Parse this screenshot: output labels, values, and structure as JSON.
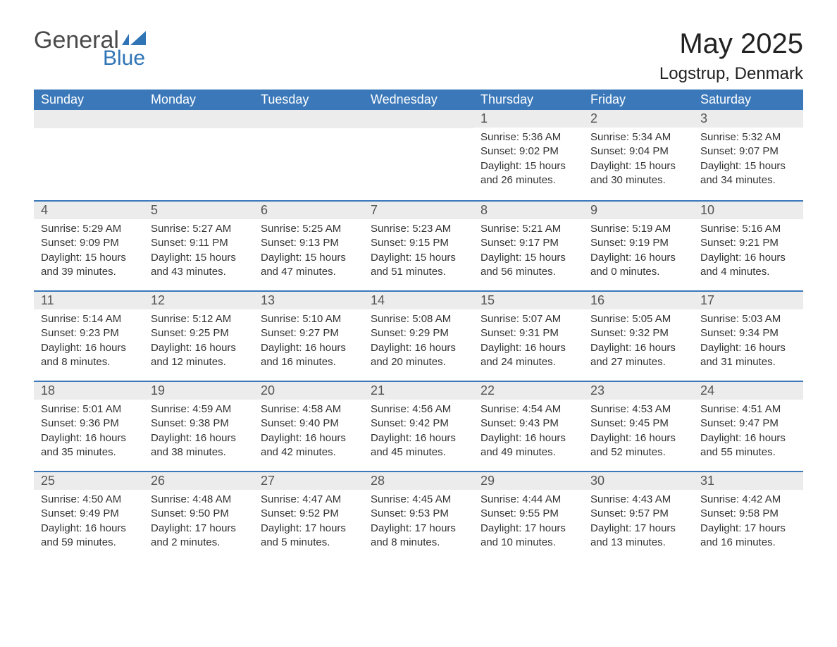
{
  "logo": {
    "word1": "General",
    "word2": "Blue",
    "flag_color": "#2f74b5"
  },
  "title": "May 2025",
  "location": "Logstrup, Denmark",
  "colors": {
    "header_bg": "#3a78b9",
    "header_text": "#ffffff",
    "daybar_bg": "#ececec",
    "daybar_text": "#555555",
    "body_text": "#333333",
    "rule": "#3a78b9",
    "background": "#ffffff"
  },
  "weekdays": [
    "Sunday",
    "Monday",
    "Tuesday",
    "Wednesday",
    "Thursday",
    "Friday",
    "Saturday"
  ],
  "weeks": [
    [
      null,
      null,
      null,
      null,
      {
        "n": "1",
        "sunrise": "5:36 AM",
        "sunset": "9:02 PM",
        "dl": "15 hours and 26 minutes."
      },
      {
        "n": "2",
        "sunrise": "5:34 AM",
        "sunset": "9:04 PM",
        "dl": "15 hours and 30 minutes."
      },
      {
        "n": "3",
        "sunrise": "5:32 AM",
        "sunset": "9:07 PM",
        "dl": "15 hours and 34 minutes."
      }
    ],
    [
      {
        "n": "4",
        "sunrise": "5:29 AM",
        "sunset": "9:09 PM",
        "dl": "15 hours and 39 minutes."
      },
      {
        "n": "5",
        "sunrise": "5:27 AM",
        "sunset": "9:11 PM",
        "dl": "15 hours and 43 minutes."
      },
      {
        "n": "6",
        "sunrise": "5:25 AM",
        "sunset": "9:13 PM",
        "dl": "15 hours and 47 minutes."
      },
      {
        "n": "7",
        "sunrise": "5:23 AM",
        "sunset": "9:15 PM",
        "dl": "15 hours and 51 minutes."
      },
      {
        "n": "8",
        "sunrise": "5:21 AM",
        "sunset": "9:17 PM",
        "dl": "15 hours and 56 minutes."
      },
      {
        "n": "9",
        "sunrise": "5:19 AM",
        "sunset": "9:19 PM",
        "dl": "16 hours and 0 minutes."
      },
      {
        "n": "10",
        "sunrise": "5:16 AM",
        "sunset": "9:21 PM",
        "dl": "16 hours and 4 minutes."
      }
    ],
    [
      {
        "n": "11",
        "sunrise": "5:14 AM",
        "sunset": "9:23 PM",
        "dl": "16 hours and 8 minutes."
      },
      {
        "n": "12",
        "sunrise": "5:12 AM",
        "sunset": "9:25 PM",
        "dl": "16 hours and 12 minutes."
      },
      {
        "n": "13",
        "sunrise": "5:10 AM",
        "sunset": "9:27 PM",
        "dl": "16 hours and 16 minutes."
      },
      {
        "n": "14",
        "sunrise": "5:08 AM",
        "sunset": "9:29 PM",
        "dl": "16 hours and 20 minutes."
      },
      {
        "n": "15",
        "sunrise": "5:07 AM",
        "sunset": "9:31 PM",
        "dl": "16 hours and 24 minutes."
      },
      {
        "n": "16",
        "sunrise": "5:05 AM",
        "sunset": "9:32 PM",
        "dl": "16 hours and 27 minutes."
      },
      {
        "n": "17",
        "sunrise": "5:03 AM",
        "sunset": "9:34 PM",
        "dl": "16 hours and 31 minutes."
      }
    ],
    [
      {
        "n": "18",
        "sunrise": "5:01 AM",
        "sunset": "9:36 PM",
        "dl": "16 hours and 35 minutes."
      },
      {
        "n": "19",
        "sunrise": "4:59 AM",
        "sunset": "9:38 PM",
        "dl": "16 hours and 38 minutes."
      },
      {
        "n": "20",
        "sunrise": "4:58 AM",
        "sunset": "9:40 PM",
        "dl": "16 hours and 42 minutes."
      },
      {
        "n": "21",
        "sunrise": "4:56 AM",
        "sunset": "9:42 PM",
        "dl": "16 hours and 45 minutes."
      },
      {
        "n": "22",
        "sunrise": "4:54 AM",
        "sunset": "9:43 PM",
        "dl": "16 hours and 49 minutes."
      },
      {
        "n": "23",
        "sunrise": "4:53 AM",
        "sunset": "9:45 PM",
        "dl": "16 hours and 52 minutes."
      },
      {
        "n": "24",
        "sunrise": "4:51 AM",
        "sunset": "9:47 PM",
        "dl": "16 hours and 55 minutes."
      }
    ],
    [
      {
        "n": "25",
        "sunrise": "4:50 AM",
        "sunset": "9:49 PM",
        "dl": "16 hours and 59 minutes."
      },
      {
        "n": "26",
        "sunrise": "4:48 AM",
        "sunset": "9:50 PM",
        "dl": "17 hours and 2 minutes."
      },
      {
        "n": "27",
        "sunrise": "4:47 AM",
        "sunset": "9:52 PM",
        "dl": "17 hours and 5 minutes."
      },
      {
        "n": "28",
        "sunrise": "4:45 AM",
        "sunset": "9:53 PM",
        "dl": "17 hours and 8 minutes."
      },
      {
        "n": "29",
        "sunrise": "4:44 AM",
        "sunset": "9:55 PM",
        "dl": "17 hours and 10 minutes."
      },
      {
        "n": "30",
        "sunrise": "4:43 AM",
        "sunset": "9:57 PM",
        "dl": "17 hours and 13 minutes."
      },
      {
        "n": "31",
        "sunrise": "4:42 AM",
        "sunset": "9:58 PM",
        "dl": "17 hours and 16 minutes."
      }
    ]
  ],
  "labels": {
    "sunrise": "Sunrise:",
    "sunset": "Sunset:",
    "daylight": "Daylight:"
  },
  "fonts": {
    "title_size": 40,
    "location_size": 24,
    "weekday_size": 18,
    "daynum_size": 18,
    "body_size": 15
  }
}
